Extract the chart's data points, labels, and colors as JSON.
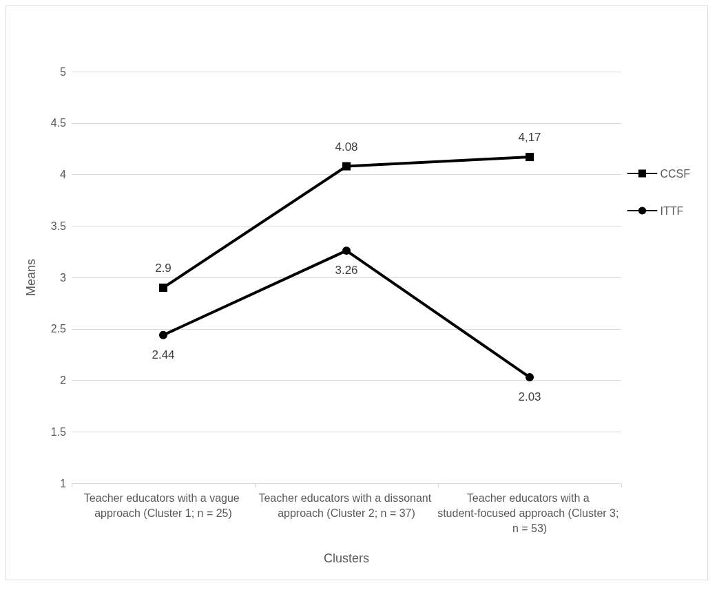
{
  "chart_data": {
    "type": "line",
    "xlabel": "Clusters",
    "ylabel": "Means",
    "categories": [
      "Teacher educators with a vague approach (Cluster 1; n = 25)",
      "Teacher educators with a dissonant approach (Cluster 2; n = 37)",
      "Teacher educators with a student-focused approach (Cluster 3; n = 53)"
    ],
    "series": [
      {
        "name": "CCSF",
        "color": "#000000",
        "marker": "square",
        "values": [
          2.9,
          4.08,
          4.17
        ],
        "value_labels": [
          "2.9",
          "4.08",
          "4,17"
        ]
      },
      {
        "name": "ITTF",
        "color": "#000000",
        "marker": "circle",
        "values": [
          2.44,
          3.26,
          2.03
        ],
        "value_labels": [
          "2.44",
          "3.26",
          "2.03"
        ]
      }
    ],
    "ylim": [
      1,
      5
    ],
    "yticks": [
      1,
      1.5,
      2,
      2.5,
      3,
      3.5,
      4,
      4.5,
      5
    ],
    "grid": "y",
    "legend": "right",
    "line_style": "solid"
  }
}
